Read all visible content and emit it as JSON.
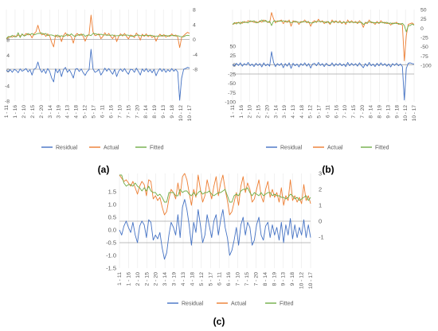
{
  "chart_data": [
    {
      "panel_label": "(a)",
      "type": "line",
      "x_tick_labels": [
        "1 - 11",
        "1 - 16",
        "2 - 10",
        "2 - 15",
        "2 - 20",
        "3 - 14",
        "3 - 19",
        "4 - 13",
        "4 - 18",
        "5 - 12",
        "5 - 17",
        "6 - 11",
        "6 - 16",
        "7 - 10",
        "7 - 15",
        "7 - 20",
        "8 - 14",
        "8 - 19",
        "9 - 13",
        "9 - 18",
        "10 - 12",
        "10 - 17"
      ],
      "left_axis": {
        "ticks": [
          "8",
          "4",
          "0",
          "-4",
          "-8"
        ],
        "range": [
          -8,
          8
        ]
      },
      "right_axis": {
        "ticks": [
          "8",
          "4",
          "0",
          "-4",
          "-8"
        ],
        "range": [
          -8,
          8
        ]
      },
      "legend": [
        "Residual",
        "Actual",
        "Fitted"
      ],
      "legend_placement": "bottom",
      "series": [
        {
          "name": "Residual",
          "axis": "left",
          "color": "#4472c4",
          "values": [
            0,
            -0.3,
            0.2,
            -0.5,
            0.3,
            0,
            -0.6,
            0.4,
            -0.2,
            0.1,
            0.5,
            -0.4,
            0.2,
            -1.2,
            0.3,
            0.6,
            2.2,
            0.4,
            -0.5,
            0.3,
            -0.8,
            0.5,
            -0.3,
            -2,
            -3,
            0.4,
            -0.6,
            0.3,
            -1.6,
            0.2,
            0.8,
            -0.5,
            0.2,
            -0.8,
            -2,
            0.3,
            0.5,
            -0.3,
            0.4,
            -0.6,
            -1.3,
            -0.3,
            0.2,
            5.5,
            0.4,
            -0.5,
            -0.2,
            0.3,
            -1.2,
            -0.4,
            0.6,
            -0.2,
            0.5,
            -0.3,
            -1,
            0.3,
            -1.6,
            -0.2,
            0.4,
            -0.3,
            0.5,
            -0.4,
            -1,
            0.3,
            0.2,
            -0.5,
            0.6,
            -0.2,
            -1.2,
            0.4,
            -0.3,
            0.5,
            -0.4,
            0.2,
            -0.6,
            0.3,
            -1.4,
            -0.2,
            0.5,
            -0.3,
            0.4,
            -0.5,
            0.2,
            -0.3,
            0.5,
            -0.2,
            0.3,
            -0.4,
            -7.8,
            -2,
            0.3,
            0.5,
            0.8,
            0.6
          ]
        },
        {
          "name": "Actual",
          "axis": "right",
          "color": "#ed7d31",
          "values": [
            0.2,
            0.5,
            0.8,
            0.6,
            1,
            0.7,
            1.2,
            0.9,
            1.3,
            1,
            1.6,
            1.2,
            1.4,
            0.4,
            1.5,
            2,
            3.8,
            2,
            1.2,
            1.6,
            0.8,
            1.5,
            0.9,
            -0.8,
            -2,
            1.2,
            0.6,
            1,
            -0.6,
            1,
            1.8,
            0.9,
            1.2,
            0.7,
            -1,
            1.1,
            1.6,
            1,
            1.5,
            0.8,
            -0.5,
            0.8,
            1.4,
            6.5,
            2,
            1,
            1.2,
            1.5,
            0.2,
            0.8,
            1.8,
            1,
            1.6,
            0.8,
            0.2,
            1.2,
            -0.6,
            0.8,
            1.5,
            0.9,
            1.6,
            0.8,
            0.1,
            1.2,
            1,
            0.5,
            1.7,
            1,
            -0.2,
            1.4,
            0.8,
            1.5,
            0.7,
            1.2,
            0.5,
            1,
            -0.5,
            0.7,
            1.4,
            0.8,
            1.3,
            0.6,
            1,
            0.8,
            1.5,
            0.9,
            1.2,
            0.6,
            -2.2,
            0.5,
            1,
            1.5,
            1.9,
            1.6
          ]
        },
        {
          "name": "Fitted",
          "axis": "right",
          "color": "#70ad47",
          "values": [
            0.2,
            0.8,
            0.6,
            1.1,
            0.7,
            0.7,
            1.8,
            0.5,
            1.5,
            0.9,
            1.1,
            1.6,
            1.2,
            1.6,
            1.2,
            1.4,
            1.6,
            1.6,
            1.7,
            1.3,
            1.6,
            1,
            1.2,
            1.2,
            1,
            0.8,
            1.2,
            0.7,
            1,
            0.8,
            1,
            1.4,
            1,
            1.5,
            1,
            0.8,
            1.1,
            1.3,
            1.1,
            1.4,
            0.8,
            1.1,
            1.2,
            1,
            1.6,
            1.5,
            1.4,
            1.2,
            1.4,
            1.2,
            1.2,
            1.2,
            1.1,
            1.1,
            1.2,
            0.9,
            1,
            1,
            1.1,
            1.2,
            1.1,
            1.2,
            1.1,
            0.9,
            0.8,
            1,
            1.1,
            1.2,
            1,
            1,
            1.1,
            1,
            1.1,
            1,
            1.1,
            0.7,
            0.9,
            0.9,
            0.9,
            1.1,
            0.9,
            1.1,
            0.8,
            1.1,
            1,
            1.1,
            0.9,
            1,
            0.8,
            0.7,
            0.7,
            1,
            1.1,
            1
          ]
        }
      ]
    },
    {
      "panel_label": "(b)",
      "type": "line",
      "x_tick_labels": [
        "1 - 11",
        "1 - 16",
        "2 - 10",
        "2 - 15",
        "2 - 20",
        "3 - 14",
        "3 - 19",
        "4 - 13",
        "4 - 18",
        "5 - 12",
        "5 - 17",
        "6 - 11",
        "6 - 16",
        "7 - 10",
        "7 - 15",
        "7 - 20",
        "8 - 14",
        "8 - 19",
        "9 - 13",
        "9 - 18",
        "10 - 12",
        "10 - 17"
      ],
      "left_axis": {
        "ticks": [
          "50",
          "25",
          "0",
          "-25",
          "-50",
          "-75",
          "-100"
        ],
        "range": [
          -100,
          50
        ]
      },
      "right_axis": {
        "ticks": [
          "50",
          "25",
          "0",
          "-25",
          "-50",
          "-75",
          "-100"
        ],
        "range": [
          -100,
          50
        ]
      },
      "legend": [
        "Residual",
        "Actual",
        "Fitted"
      ],
      "legend_placement": "bottom",
      "series": [
        {
          "name": "Residual",
          "axis": "left",
          "color": "#4472c4",
          "values": [
            0,
            -3,
            4,
            -2,
            5,
            -4,
            3,
            -1,
            6,
            -3,
            2,
            -5,
            4,
            -2,
            3,
            -6,
            5,
            -3,
            2,
            -4,
            35,
            6,
            -5,
            3,
            -2,
            4,
            -8,
            3,
            -4,
            5,
            -10,
            4,
            -3,
            2,
            -6,
            3,
            -2,
            5,
            -4,
            3,
            -9,
            2,
            4,
            -3,
            6,
            -2,
            3,
            -5,
            4,
            -2,
            -3,
            5,
            -4,
            3,
            -2,
            4,
            -3,
            2,
            -5,
            6,
            -3,
            4,
            -2,
            3,
            -4,
            5,
            -2,
            -8,
            3,
            -4,
            6,
            -3,
            2,
            -5,
            4,
            -3,
            5,
            -2,
            3,
            -4,
            2,
            -6,
            3,
            -2,
            4,
            -3,
            2,
            -5,
            -95,
            -10,
            4,
            5,
            3,
            2
          ]
        },
        {
          "name": "Actual",
          "axis": "right",
          "color": "#ed7d31",
          "values": [
            10,
            12,
            15,
            14,
            16,
            13,
            18,
            15,
            20,
            17,
            19,
            15,
            18,
            14,
            20,
            16,
            22,
            18,
            17,
            15,
            42,
            25,
            14,
            20,
            18,
            22,
            12,
            20,
            15,
            22,
            5,
            20,
            16,
            18,
            10,
            18,
            16,
            22,
            14,
            18,
            5,
            16,
            20,
            15,
            24,
            16,
            20,
            12,
            18,
            16,
            10,
            22,
            14,
            20,
            14,
            20,
            12,
            18,
            10,
            22,
            14,
            20,
            14,
            18,
            12,
            20,
            14,
            2,
            16,
            12,
            22,
            14,
            16,
            10,
            18,
            12,
            20,
            14,
            16,
            12,
            14,
            8,
            14,
            12,
            16,
            10,
            12,
            8,
            -88,
            -20,
            10,
            12,
            14,
            10
          ]
        },
        {
          "name": "Fitted",
          "axis": "right",
          "color": "#70ad47",
          "values": [
            10,
            15,
            11,
            16,
            11,
            17,
            15,
            16,
            14,
            20,
            17,
            20,
            14,
            16,
            17,
            22,
            17,
            21,
            15,
            19,
            7,
            19,
            19,
            17,
            20,
            18,
            20,
            17,
            19,
            17,
            15,
            16,
            19,
            16,
            16,
            15,
            18,
            17,
            18,
            15,
            14,
            14,
            16,
            18,
            18,
            18,
            17,
            17,
            14,
            18,
            13,
            17,
            18,
            17,
            16,
            16,
            15,
            16,
            15,
            16,
            17,
            16,
            16,
            15,
            16,
            15,
            16,
            10,
            13,
            16,
            16,
            17,
            14,
            15,
            14,
            15,
            15,
            16,
            13,
            16,
            12,
            14,
            11,
            14,
            12,
            13,
            10,
            13,
            7,
            -10,
            6,
            7,
            11,
            8
          ]
        }
      ]
    },
    {
      "panel_label": "(c)",
      "type": "line",
      "x_tick_labels": [
        "1 - 11",
        "1 - 16",
        "2 - 10",
        "2 - 15",
        "2 - 20",
        "3 - 14",
        "3 - 19",
        "4 - 13",
        "4 - 18",
        "5 - 12",
        "5 - 17",
        "6 - 11",
        "6 - 16",
        "7 - 10",
        "7 - 15",
        "7 - 20",
        "8 - 14",
        "8 - 19",
        "9 - 13",
        "9 - 18",
        "10 - 12",
        "10 - 17"
      ],
      "left_axis": {
        "ticks": [
          "1.5",
          "1.0",
          "0.5",
          "0.0",
          "-0.5",
          "-1.0",
          "-1.5"
        ],
        "range": [
          -1.5,
          1.5
        ]
      },
      "right_axis": {
        "ticks": [
          "3",
          "2",
          "1",
          "0",
          "-1"
        ],
        "range": [
          -1,
          3
        ]
      },
      "legend": [
        "Residual",
        "Actual",
        "Fitted"
      ],
      "legend_placement": "bottom",
      "series": [
        {
          "name": "Residual",
          "axis": "left",
          "color": "#4472c4",
          "values": [
            0,
            -0.2,
            0.15,
            0.35,
            0.1,
            -0.1,
            0.3,
            -0.2,
            -0.5,
            0.15,
            0.35,
            0.2,
            -0.3,
            0.4,
            0.3,
            -0.4,
            -0.2,
            -0.35,
            -0.1,
            -0.7,
            -1.15,
            -0.9,
            -0.2,
            0.3,
            0.1,
            -0.2,
            0.6,
            -0.3,
            0.9,
            1.2,
            0.8,
            0.2,
            -0.6,
            0.3,
            -0.1,
            0.8,
            0.2,
            -0.5,
            -0.2,
            0.6,
            0.15,
            -0.3,
            0.35,
            0.6,
            -0.2,
            0.4,
            0.8,
            0.1,
            -0.3,
            -1,
            -0.8,
            -0.4,
            0.1,
            -0.6,
            0.2,
            0.5,
            -0.2,
            0.3,
            0.1,
            -0.6,
            -0.4,
            0.2,
            0.5,
            -0.2,
            -0.4,
            0.15,
            0.3,
            -0.3,
            0.2,
            -0.2,
            0.1,
            -0.4,
            0.3,
            -0.5,
            0.2,
            -0.2,
            0.45,
            -0.35,
            0.2,
            -0.3,
            0.1,
            -0.2,
            0.4,
            -0.3,
            0.2,
            -0.3
          ]
        },
        {
          "name": "Actual",
          "axis": "right",
          "color": "#ed7d31",
          "values": [
            2.9,
            2.7,
            2.5,
            2.6,
            2.4,
            2.2,
            2.5,
            2.1,
            1.7,
            2.2,
            2.5,
            2.3,
            1.6,
            2.6,
            2.5,
            1.4,
            1.6,
            1.3,
            1.5,
            0.9,
            0.4,
            0.6,
            1.4,
            2.0,
            1.8,
            1.4,
            2.4,
            1.6,
            2.8,
            3.0,
            2.6,
            1.8,
            1.0,
            2.0,
            1.5,
            2.9,
            2.0,
            1.2,
            1.6,
            2.6,
            2.0,
            1.4,
            2.2,
            2.8,
            1.6,
            2.4,
            2.9,
            2.0,
            1.3,
            0.4,
            0.6,
            1.2,
            1.8,
            1.0,
            2.2,
            2.8,
            1.8,
            2.4,
            2.0,
            1.2,
            1.4,
            2.0,
            2.6,
            1.6,
            1.2,
            2.0,
            2.5,
            1.5,
            2.0,
            1.5,
            1.8,
            1.2,
            2.1,
            1.0,
            1.6,
            1.3,
            2.6,
            1.3,
            1.6,
            1.2,
            1.5,
            1.1,
            2.3,
            1.3,
            1.6,
            1.1
          ]
        },
        {
          "name": "Fitted",
          "axis": "right",
          "color": "#70ad47",
          "values": [
            2.9,
            2.9,
            2.4,
            2.2,
            2.3,
            2.3,
            2.2,
            2.4,
            2.2,
            2.1,
            1.9,
            2.1,
            1.9,
            2.2,
            1.9,
            1.8,
            1.8,
            1.6,
            1.7,
            1.5,
            1.2,
            1.2,
            1.8,
            1.8,
            1.8,
            1.6,
            1.6,
            2.0,
            1.8,
            1.9,
            1.9,
            1.7,
            1.6,
            1.8,
            1.6,
            1.8,
            1.9,
            1.7,
            1.8,
            1.8,
            1.9,
            1.7,
            1.6,
            1.7,
            1.8,
            1.8,
            1.9,
            2.0,
            1.6,
            1.2,
            1.2,
            1.6,
            1.7,
            1.6,
            1.9,
            2.0,
            2.0,
            2.1,
            1.8,
            1.6,
            1.8,
            1.7,
            1.6,
            1.8,
            1.6,
            1.7,
            1.8,
            1.8,
            1.6,
            1.7,
            1.6,
            1.6,
            1.5,
            1.5,
            1.4,
            1.5,
            1.7,
            1.6,
            1.4,
            1.5,
            1.3,
            1.4,
            1.5,
            1.6,
            1.3,
            1.5
          ]
        }
      ]
    }
  ]
}
